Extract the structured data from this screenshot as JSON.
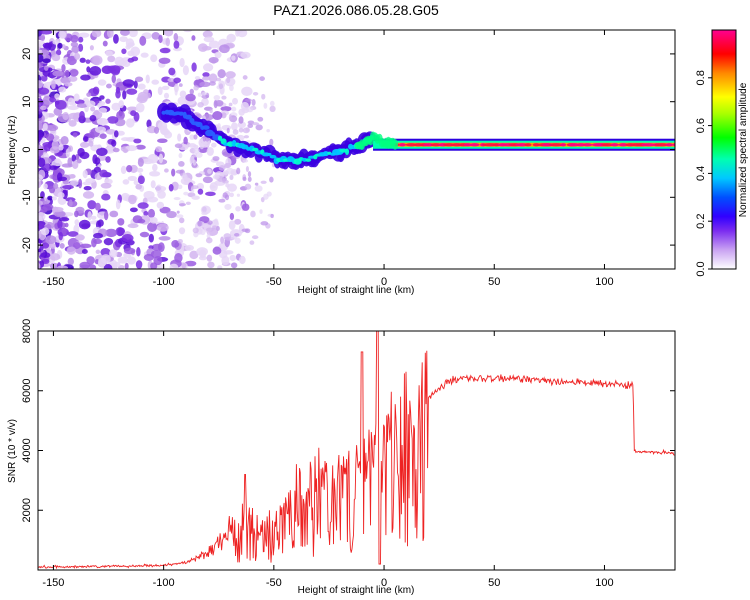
{
  "title": "PAZ1.2026.086.05.28.G05",
  "chart_data": [
    {
      "type": "heatmap",
      "name": "spectrogram",
      "xlabel": "Height of straight line (km)",
      "ylabel": "Frequency (Hz)",
      "xlim": [
        -157,
        132
      ],
      "ylim": [
        -25,
        25
      ],
      "xticks": [
        -150,
        -100,
        -50,
        0,
        50,
        100
      ],
      "yticks": [
        -20,
        -10,
        0,
        10,
        20
      ],
      "colorbar": {
        "label": "Normalized spectral amplitude",
        "range": [
          0,
          1
        ],
        "ticks": [
          0.0,
          0.2,
          0.4,
          0.6,
          0.8
        ],
        "colormap": [
          "#ffffff",
          "#d8b8f0",
          "#8a2be2",
          "#6600cc",
          "#0000ff",
          "#00b4ff",
          "#00ffff",
          "#00ff66",
          "#00ff00",
          "#aaff00",
          "#ffff00",
          "#ffaa00",
          "#ff0000",
          "#ff0066",
          "#ff0099"
        ]
      },
      "ridge": [
        {
          "x": -100,
          "y": 8
        },
        {
          "x": -90,
          "y": 7
        },
        {
          "x": -80,
          "y": 4
        },
        {
          "x": -70,
          "y": 1
        },
        {
          "x": -60,
          "y": 0
        },
        {
          "x": -50,
          "y": -1.5
        },
        {
          "x": -40,
          "y": -2.5
        },
        {
          "x": -30,
          "y": -1.5
        },
        {
          "x": -20,
          "y": -0.5
        },
        {
          "x": -10,
          "y": 1
        },
        {
          "x": -5,
          "y": 2.5
        },
        {
          "x": 0,
          "y": 1.5
        },
        {
          "x": 5,
          "y": 1
        },
        {
          "x": 132,
          "y": 1
        }
      ]
    },
    {
      "type": "line",
      "name": "snr",
      "xlabel": "Height of straight line (km)",
      "ylabel": "SNR (10 * v/v)",
      "xlim": [
        -157,
        132
      ],
      "ylim": [
        0,
        8000
      ],
      "xticks": [
        -150,
        -100,
        50,
        100
      ],
      "xticks_all": [
        -150,
        -100,
        -50,
        0,
        50,
        100
      ],
      "yticks": [
        2000,
        4000,
        6000,
        8000
      ],
      "color": "#ee2222",
      "series": [
        {
          "name": "SNR",
          "x": [
            -157,
            -140,
            -120,
            -100,
            -90,
            -85,
            -80,
            -75,
            -70,
            -65,
            -62,
            -60,
            -55,
            -50,
            -45,
            -40,
            -35,
            -30,
            -25,
            -20,
            -15,
            -10,
            -5,
            -3,
            0,
            5,
            10,
            15,
            20,
            25,
            30,
            35,
            40,
            50,
            60,
            70,
            80,
            90,
            100,
            113,
            113.5,
            120,
            132
          ],
          "values": [
            100,
            110,
            130,
            160,
            250,
            400,
            600,
            900,
            1300,
            1600,
            2000,
            1500,
            1400,
            1600,
            2000,
            2500,
            2600,
            2900,
            3200,
            3400,
            3700,
            3700,
            4000,
            4200,
            4200,
            4800,
            5000,
            5400,
            5800,
            6100,
            6300,
            6400,
            6400,
            6400,
            6400,
            6400,
            6300,
            6300,
            6200,
            6200,
            3950,
            3950,
            3900
          ]
        }
      ],
      "annotations": [
        {
          "x": -62,
          "y": 3200,
          "text": ""
        }
      ]
    }
  ]
}
